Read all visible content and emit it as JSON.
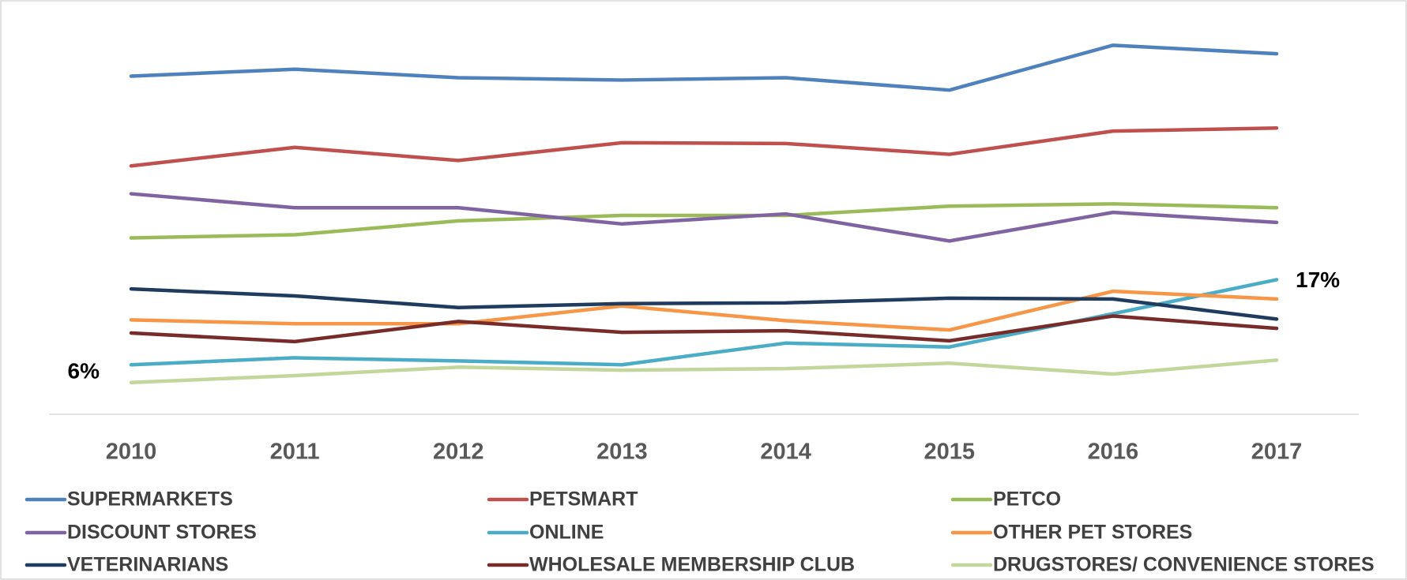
{
  "chart_data": {
    "type": "line",
    "x": [
      "2010",
      "2011",
      "2012",
      "2013",
      "2014",
      "2015",
      "2016",
      "2017"
    ],
    "series": [
      {
        "name": "SUPERMARKETS",
        "color": "#4f81bd",
        "values": [
          43.3,
          44.2,
          43.1,
          42.8,
          43.1,
          41.5,
          47.3,
          46.2
        ]
      },
      {
        "name": "PETSMART",
        "color": "#c0504d",
        "values": [
          31.7,
          34.1,
          32.4,
          34.7,
          34.6,
          33.2,
          36.2,
          36.6
        ]
      },
      {
        "name": "PETCO",
        "color": "#9bbb59",
        "values": [
          22.4,
          22.8,
          24.6,
          25.3,
          25.3,
          26.5,
          26.8,
          26.3
        ]
      },
      {
        "name": "DISCOUNT STORES",
        "color": "#8064a2",
        "values": [
          28.1,
          26.3,
          26.3,
          24.2,
          25.5,
          22.0,
          25.7,
          24.4
        ]
      },
      {
        "name": "ONLINE",
        "color": "#4bacc6",
        "values": [
          6,
          6.9,
          6.5,
          6.0,
          8.8,
          8.3,
          12.6,
          17
        ]
      },
      {
        "name": "OTHER PET STORES",
        "color": "#f79646",
        "values": [
          11.8,
          11.3,
          11.3,
          13.6,
          11.7,
          10.5,
          15.5,
          14.5
        ]
      },
      {
        "name": "VETERINARIANS",
        "color": "#1f3b5e",
        "values": [
          15.8,
          14.9,
          13.4,
          13.9,
          14.0,
          14.6,
          14.5,
          11.9
        ]
      },
      {
        "name": "WHOLESALE MEMBERSHIP CLUB",
        "color": "#772c2a",
        "values": [
          10.1,
          9.0,
          11.6,
          10.2,
          10.4,
          9.1,
          12.3,
          10.7
        ]
      },
      {
        "name": "DRUGSTORES/ CONVENIENCE STORES",
        "color": "#c3d69b",
        "values": [
          3.7,
          4.6,
          5.7,
          5.3,
          5.5,
          6.2,
          4.8,
          6.6
        ]
      }
    ],
    "ylim": [
      -0.4,
      50.8
    ],
    "annotations": [
      "6%",
      "17%"
    ]
  }
}
